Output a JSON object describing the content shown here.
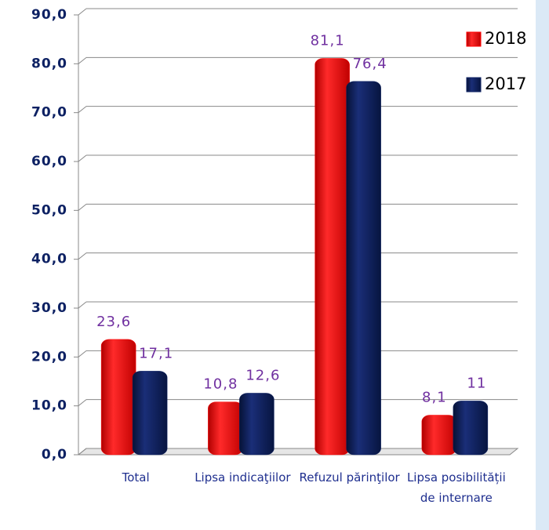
{
  "chart_data": {
    "type": "bar",
    "categories": [
      "Total",
      "Lipsa indicaţiilor",
      "Refuzul părinţilor",
      "Lipsa posibilității de internare"
    ],
    "series": [
      {
        "name": "2018",
        "color": "#ff0000",
        "values": [
          23.6,
          10.8,
          81.1,
          8.1
        ],
        "value_labels": [
          "23,6",
          "10,8",
          "81,1",
          "8,1"
        ]
      },
      {
        "name": "2017",
        "color": "#0d2163",
        "values": [
          17.1,
          12.6,
          76.4,
          11
        ],
        "value_labels": [
          "17,1",
          "12,6",
          "76,4",
          "11"
        ]
      }
    ],
    "ylim": [
      0,
      90
    ],
    "yticks": [
      {
        "value": 0,
        "label": "0,0"
      },
      {
        "value": 10,
        "label": "10,0"
      },
      {
        "value": 20,
        "label": "20,0"
      },
      {
        "value": 30,
        "label": "30,0"
      },
      {
        "value": 40,
        "label": "40,0"
      },
      {
        "value": 50,
        "label": "50,0"
      },
      {
        "value": 60,
        "label": "60,0"
      },
      {
        "value": 70,
        "label": "70,0"
      },
      {
        "value": 80,
        "label": "80,0"
      },
      {
        "value": 90,
        "label": "90,0"
      }
    ],
    "grid": true,
    "legend": "top-right"
  }
}
